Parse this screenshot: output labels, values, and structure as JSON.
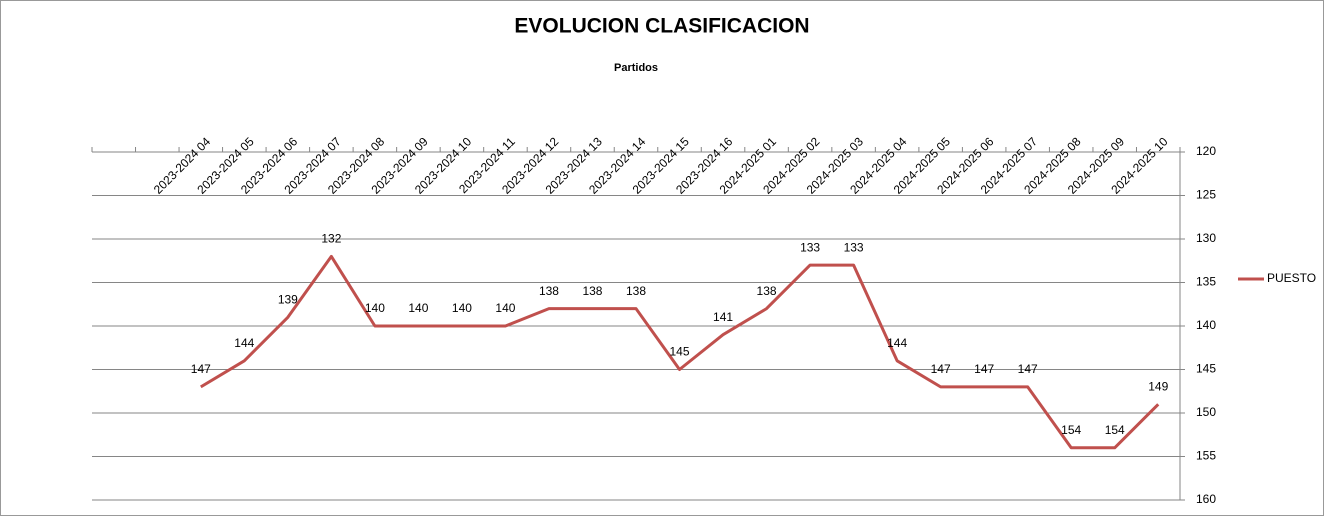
{
  "chart_data": {
    "type": "line",
    "title": "EVOLUCION CLASIFICACION",
    "x_label": "Partidos",
    "categories": [
      null,
      null,
      "2023-2024 04",
      "2023-2024 05",
      "2023-2024 06",
      "2023-2024 07",
      "2023-2024 08",
      "2023-2024 09",
      "2023-2024 10",
      "2023-2024 11",
      "2023-2024 12",
      "2023-2024 13",
      "2023-2024 14",
      "2023-2024 15",
      "2023-2024 16",
      "2024-2025 01",
      "2024-2025 02",
      "2024-2025 03",
      "2024-2025 04",
      "2024-2025 05",
      "2024-2025 06",
      "2024-2025 07",
      "2024-2025 08",
      "2024-2025 09",
      "2024-2025 10"
    ],
    "series": [
      {
        "name": "PUESTO",
        "color": "#c0504d",
        "values": [
          null,
          null,
          147,
          144,
          139,
          132,
          140,
          140,
          140,
          140,
          138,
          138,
          138,
          145,
          141,
          138,
          133,
          133,
          144,
          147,
          147,
          147,
          154,
          154,
          149
        ]
      }
    ],
    "ylim": [
      120,
      160
    ],
    "y_reversed": true,
    "y_axis_side": "right",
    "yticks": [
      120,
      125,
      130,
      135,
      140,
      145,
      150,
      155,
      160
    ],
    "grid": true,
    "legend": "right",
    "x_axis_side": "top"
  }
}
